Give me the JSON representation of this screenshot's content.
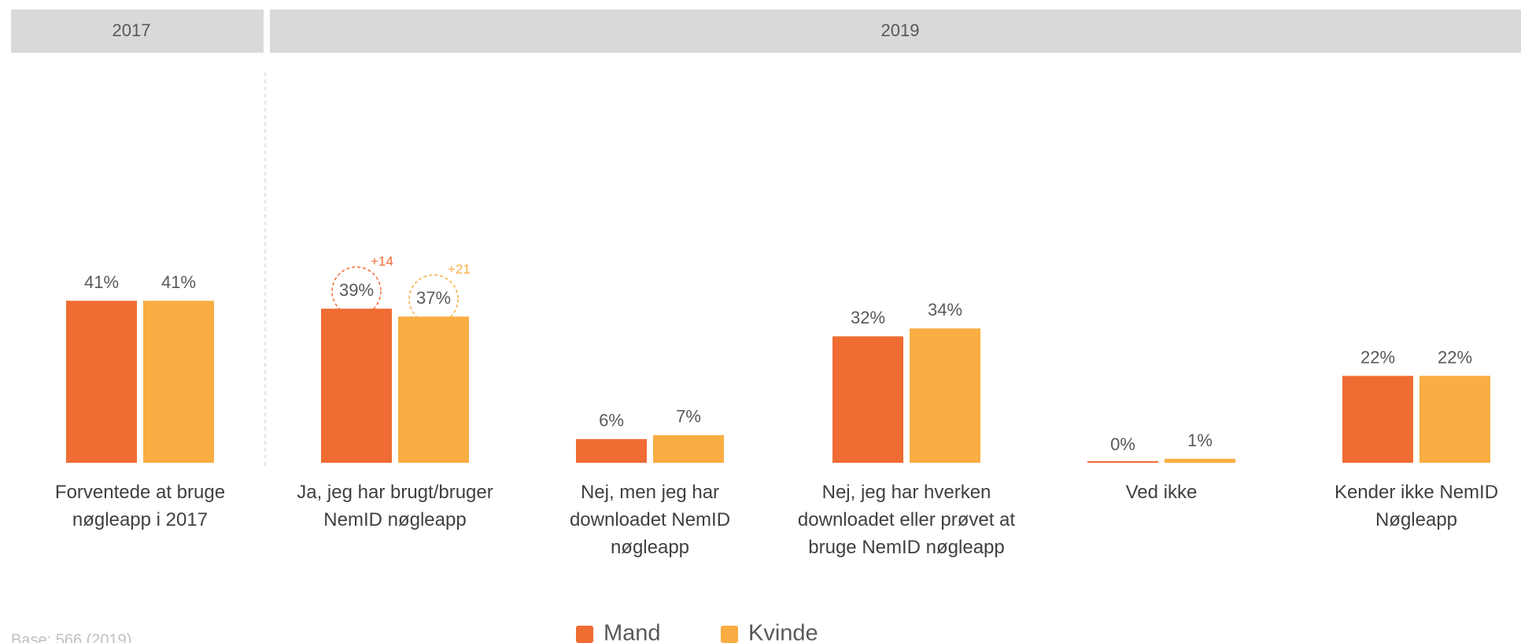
{
  "chart_data": {
    "type": "bar",
    "header": [
      "2017",
      "2019"
    ],
    "categories": [
      "Forventede at bruge\nnøgleapp i 2017",
      "Ja, jeg har brugt/bruger\nNemID nøgleapp",
      "Nej, men jeg har\ndownloadet NemID\nnøgleapp",
      "Nej, jeg har hverken\ndownloadet eller prøvet at\nbruge NemID nøgleapp",
      "Ved ikke",
      "Kender ikke NemID\nNøgleapp"
    ],
    "series": [
      {
        "name": "Mand",
        "color": "#ef6c33",
        "values": [
          41,
          39,
          6,
          32,
          0,
          22
        ],
        "value_labels": [
          "41%",
          "39%",
          "6%",
          "32%",
          "0%",
          "22%"
        ]
      },
      {
        "name": "Kvinde",
        "color": "#f9ad42",
        "values": [
          41,
          37,
          7,
          34,
          1,
          22
        ],
        "value_labels": [
          "41%",
          "37%",
          "7%",
          "34%",
          "1%",
          "22%"
        ]
      }
    ],
    "annotations": [
      "+14",
      "+21"
    ],
    "ylim": [
      0,
      100
    ],
    "footnote": "Base: 566 (2019)"
  }
}
